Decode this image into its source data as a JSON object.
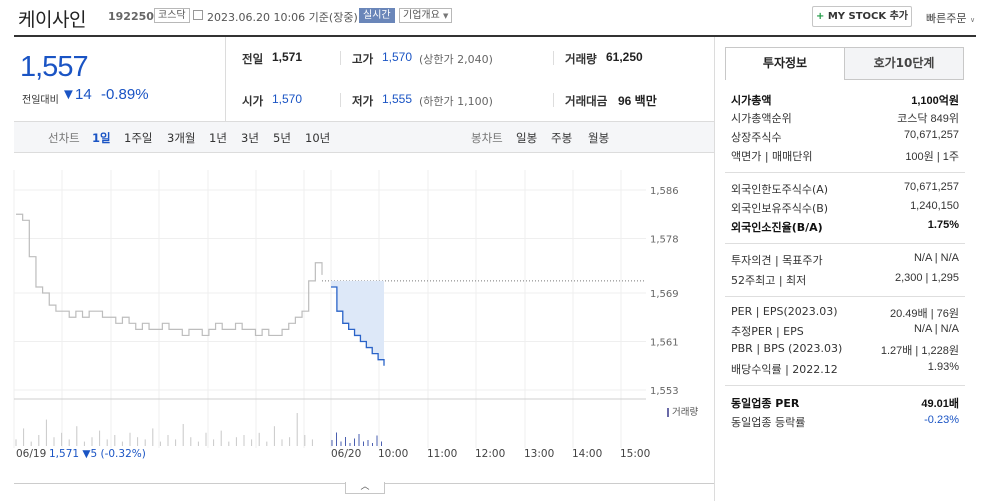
{
  "header": {
    "company_name": "케이사인",
    "code": "192250",
    "market": "코스닥",
    "date": "2023.06.20 10:06 기준(장중)",
    "live_badge": "실시간",
    "overview_badge": "기업개요",
    "mystock_plus": "+",
    "mystock_label": "MY STOCK 추가",
    "quick_menu": "빠른주문"
  },
  "price": {
    "current": "1,557",
    "change_label": "전일대비",
    "change_arrow": "▼",
    "change": "14",
    "change_pct": "-0.89%"
  },
  "stats": {
    "prev_label": "전일",
    "prev": "1,571",
    "high_label": "고가",
    "high": "1,570",
    "upper_limit": "(상한가 2,040)",
    "volume_label": "거래량",
    "volume": "61,250",
    "open_label": "시가",
    "open": "1,570",
    "low_label": "저가",
    "low": "1,555",
    "lower_limit": "(하한가 1,100)",
    "amount_label": "거래대금",
    "amount": "96 백만"
  },
  "periods": {
    "line_label": "선차트",
    "items": [
      "1일",
      "1주일",
      "3개월",
      "1년",
      "3년",
      "5년",
      "10년"
    ],
    "candle_label": "봉차트",
    "candles": [
      "일봉",
      "주봉",
      "월봉"
    ]
  },
  "chart": {
    "y_ticks": [
      "1,586",
      "1,578",
      "1,569",
      "1,561",
      "1,553"
    ],
    "volume_legend": "거래량",
    "date_left": "06/19",
    "date_right": "06/20",
    "prev_summary": "1,571 ▼5 (-0.32%)",
    "x_ticks": [
      "10:00",
      "11:00",
      "12:00",
      "13:00",
      "14:00",
      "15:00"
    ]
  },
  "chart_data": {
    "type": "line",
    "ylim": [
      1553,
      1586
    ],
    "y_ticks": [
      1586,
      1578,
      1569,
      1561,
      1553
    ],
    "prev_close": 1571,
    "series": [
      {
        "name": "06/19",
        "values": [
          1582,
          1581,
          1575,
          1570,
          1569,
          1567,
          1566,
          1566,
          1565,
          1566,
          1565,
          1566,
          1566,
          1565,
          1565,
          1564,
          1565,
          1564,
          1563,
          1564,
          1563,
          1563,
          1564,
          1563,
          1563,
          1562,
          1563,
          1563,
          1562,
          1563,
          1564,
          1563,
          1563,
          1564,
          1563,
          1563,
          1562,
          1563,
          1562,
          1562,
          1563,
          1564,
          1565,
          1566,
          1571,
          1574,
          1572
        ]
      },
      {
        "name": "06/20",
        "values": [
          1570,
          1566,
          1564,
          1563,
          1562,
          1561,
          1560,
          1559,
          1558,
          1557
        ]
      }
    ]
  },
  "right": {
    "tab_info": "투자정보",
    "tab_hoga": "호가10단계",
    "rows": [
      {
        "l": "시가총액",
        "r": "1,100억원",
        "bold": true
      },
      {
        "l": "시가총액순위",
        "r": "코스닥 849위"
      },
      {
        "l": "상장주식수",
        "r": "70,671,257"
      },
      {
        "l": "액면가 | 매매단위",
        "r": "100원 | 1주"
      },
      {
        "l": "외국인한도주식수(A)",
        "r": "70,671,257"
      },
      {
        "l": "외국인보유주식수(B)",
        "r": "1,240,150"
      },
      {
        "l": "외국인소진율(B/A)",
        "r": "1.75%",
        "bold": true
      },
      {
        "l": "투자의견 | 목표주가",
        "r": "N/A | N/A"
      },
      {
        "l": "52주최고 | 최저",
        "r": "2,300 | 1,295"
      },
      {
        "l": "PER | EPS(2023.03)",
        "r": "20.49배 | 76원"
      },
      {
        "l": "추정PER | EPS",
        "r": "N/A | N/A"
      },
      {
        "l": "PBR | BPS (2023.03)",
        "r": "1.27배 | 1,228원"
      },
      {
        "l": "배당수익률 | 2022.12",
        "r": "1.93%"
      },
      {
        "l": "동일업종 PER",
        "r": "49.01배",
        "bold": true
      },
      {
        "l": "동일업종 등락률",
        "r": "-0.23%",
        "blue": true
      }
    ]
  }
}
